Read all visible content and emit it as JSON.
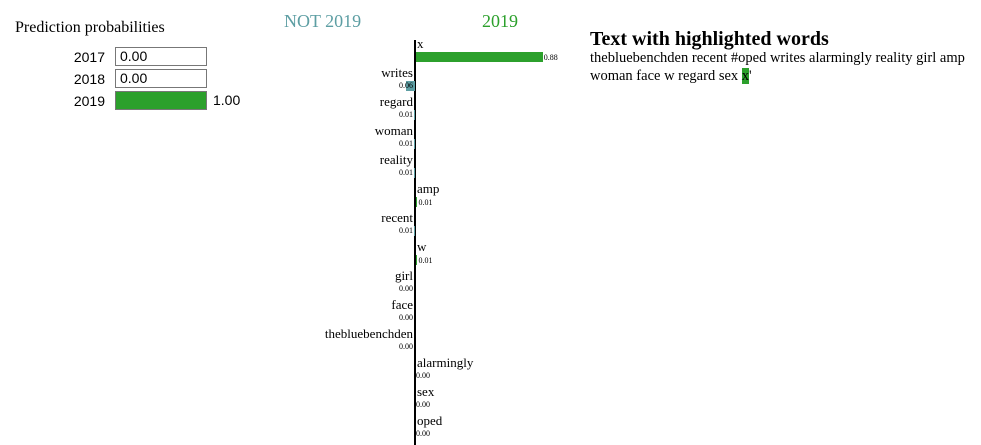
{
  "prediction": {
    "title": "Prediction probabilities",
    "bar_color": "#2ca02c",
    "rows": [
      {
        "label": "2017",
        "value": 0.0,
        "text": "0.00",
        "after": ""
      },
      {
        "label": "2018",
        "value": 0.0,
        "text": "0.00",
        "after": ""
      },
      {
        "label": "2019",
        "value": 1.0,
        "text": "",
        "after": "1.00"
      }
    ]
  },
  "explanation": {
    "neg_title": "NOT 2019",
    "pos_title": "2019",
    "neg_color": "#5d9ea3",
    "pos_color": "#2ca02c",
    "features": [
      {
        "word": "x",
        "weight": 0.88,
        "label": "0.88",
        "side": "pos"
      },
      {
        "word": "writes",
        "weight": 0.06,
        "label": "0.06",
        "side": "neg"
      },
      {
        "word": "regard",
        "weight": 0.01,
        "label": "0.01",
        "side": "neg"
      },
      {
        "word": "woman",
        "weight": 0.01,
        "label": "0.01",
        "side": "neg"
      },
      {
        "word": "reality",
        "weight": 0.01,
        "label": "0.01",
        "side": "neg"
      },
      {
        "word": "amp",
        "weight": 0.01,
        "label": "0.01",
        "side": "pos"
      },
      {
        "word": "recent",
        "weight": 0.01,
        "label": "0.01",
        "side": "neg"
      },
      {
        "word": "w",
        "weight": 0.01,
        "label": "0.01",
        "side": "pos"
      },
      {
        "word": "girl",
        "weight": 0.0,
        "label": "0.00",
        "side": "neg"
      },
      {
        "word": "face",
        "weight": 0.0,
        "label": "0.00",
        "side": "neg"
      },
      {
        "word": "thebluebenchden",
        "weight": 0.0,
        "label": "0.00",
        "side": "neg"
      },
      {
        "word": "alarmingly",
        "weight": 0.0,
        "label": "0.00",
        "side": "pos"
      },
      {
        "word": "sex",
        "weight": 0.0,
        "label": "0.00",
        "side": "pos"
      },
      {
        "word": "oped",
        "weight": 0.0,
        "label": "0.00",
        "side": "pos"
      }
    ]
  },
  "text_panel": {
    "title": "Text with highlighted words",
    "before": "thebluebenchden recent #oped writes alarmingly reality girl amp woman face w regard sex ",
    "highlight": "x",
    "after": "'"
  }
}
